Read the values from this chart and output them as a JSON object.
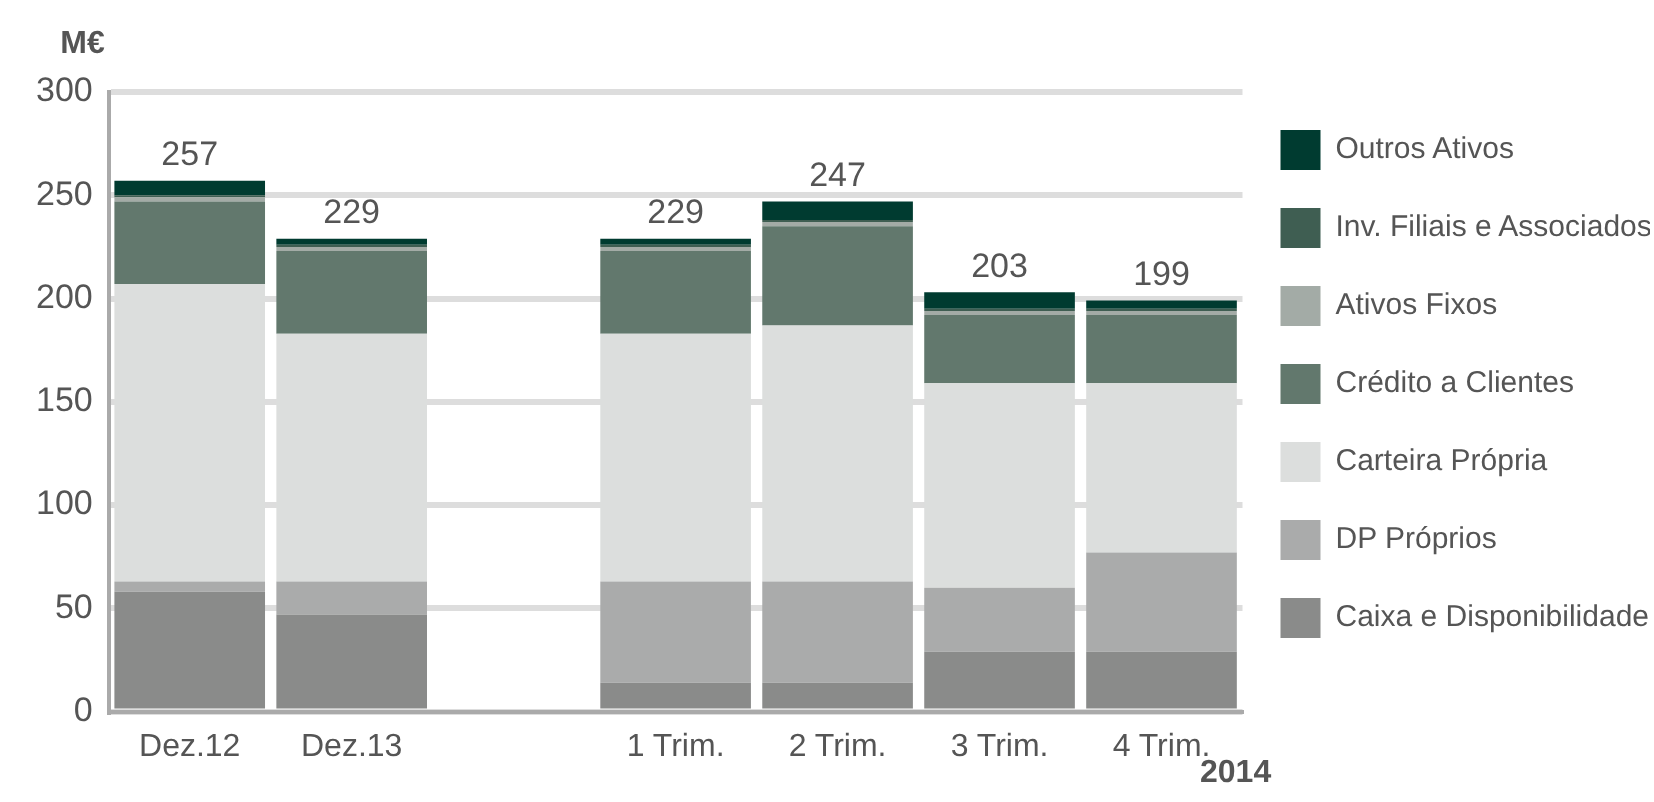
{
  "chart_data": {
    "type": "bar",
    "stacked": true,
    "ylabel": "M€",
    "categories": [
      "Dez.12",
      "Dez.13",
      null,
      "1 Trim.",
      "2 Trim.",
      "3 Trim.",
      "4 Trim."
    ],
    "series": [
      {
        "name": "Caixa e Disponibilidade",
        "color": "#8a8b8a",
        "values": [
          58,
          47,
          null,
          14,
          14,
          29,
          29
        ]
      },
      {
        "name": "DP Próprios",
        "color": "#aaabab",
        "values": [
          5,
          16,
          null,
          49,
          49,
          31,
          48
        ]
      },
      {
        "name": "Carteira Própria",
        "color": "#dcdedd",
        "values": [
          144,
          120,
          null,
          120,
          124,
          99,
          82
        ]
      },
      {
        "name": "Crédito a Clientes",
        "color": "#62786d",
        "values": [
          40,
          40,
          null,
          40,
          48,
          33,
          33
        ]
      },
      {
        "name": "Ativos Fixos",
        "color": "#a3aba6",
        "values": [
          2,
          2,
          null,
          2,
          2,
          2,
          2
        ]
      },
      {
        "name": "Inv. Filiais e Associados",
        "color": "#3f5e52",
        "values": [
          1,
          1,
          null,
          1,
          1,
          1,
          1
        ]
      },
      {
        "name": "Outros Ativos",
        "color": "#003b30",
        "values": [
          7,
          3,
          null,
          3,
          9,
          8,
          4
        ]
      }
    ],
    "totals": [
      "257",
      "229",
      null,
      "229",
      "247",
      "203",
      "199"
    ],
    "ylim": [
      0,
      300
    ],
    "yticks": [
      0,
      50,
      100,
      150,
      200,
      250,
      300
    ],
    "grid": "y",
    "legend": "right",
    "annotations": [
      "2014"
    ]
  }
}
